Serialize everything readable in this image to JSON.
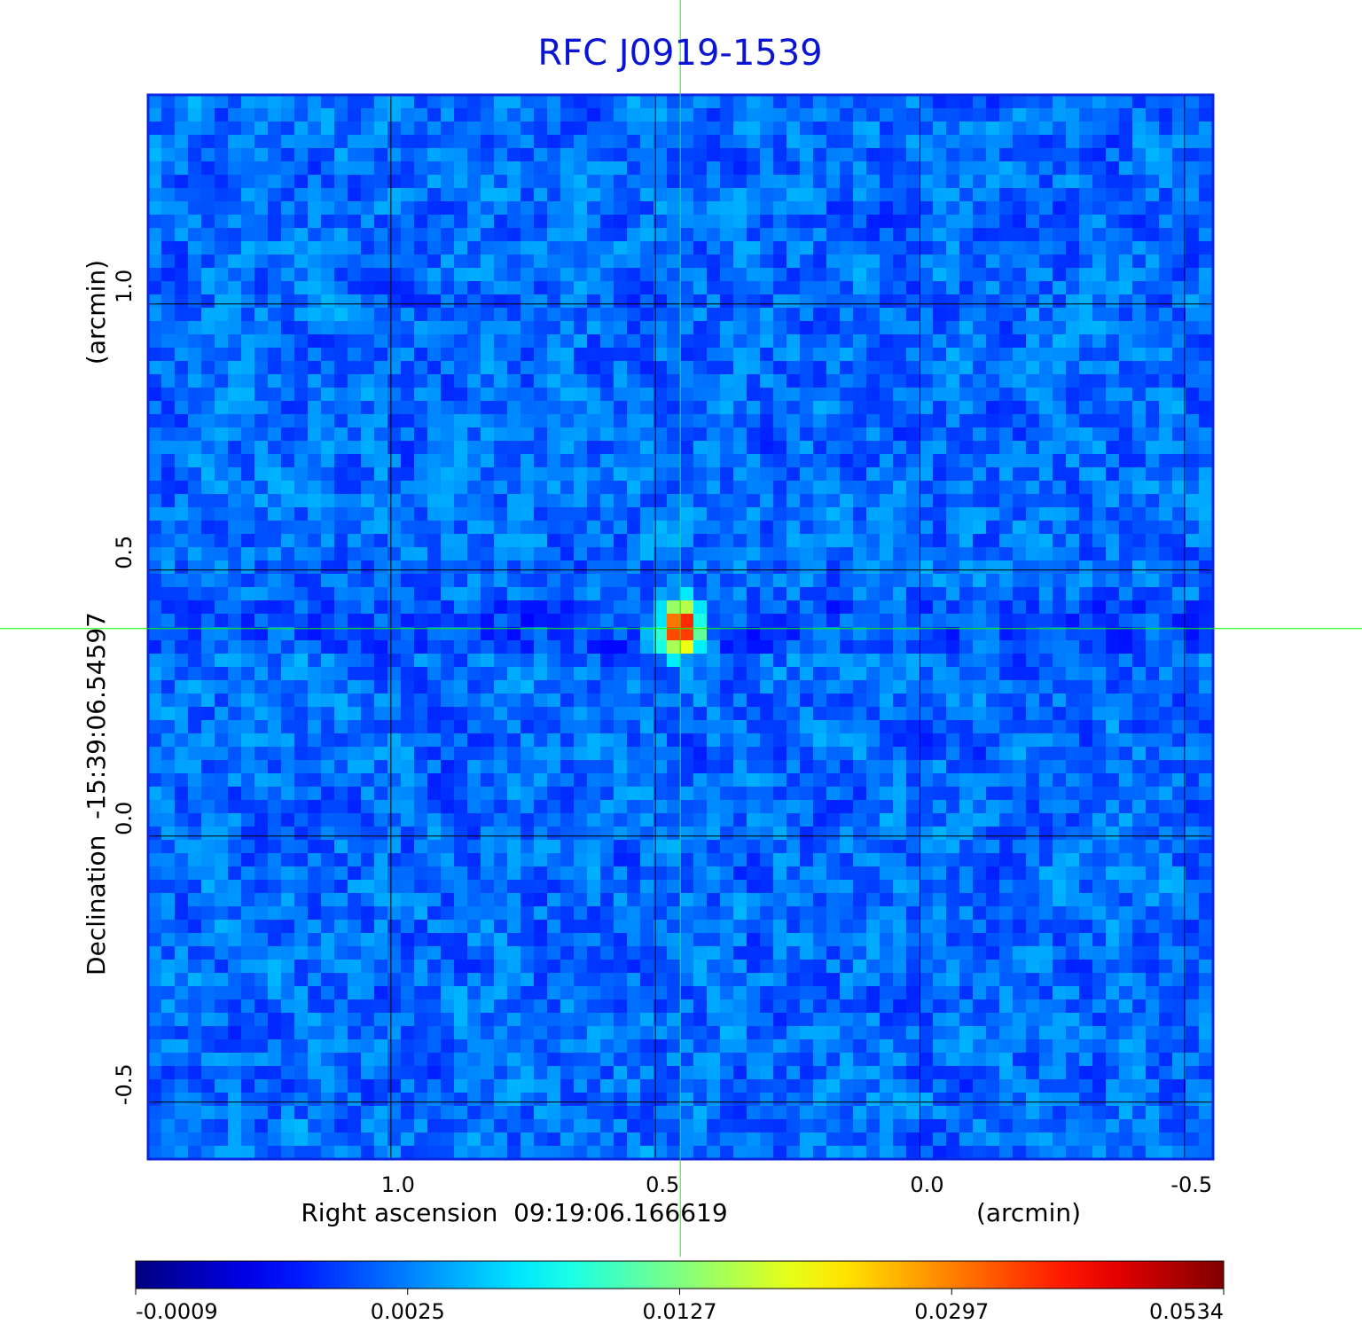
{
  "chart_data": {
    "type": "image",
    "title": "RFC J0919-1539",
    "x_label": "Right ascension  09:19:06.166619",
    "x_unit": "(arcmin)",
    "y_label": "Declination  -15:39:06.54597",
    "y_unit": "(arcmin)",
    "xlim": [
      1.459,
      -0.554
    ],
    "ylim": [
      -0.607,
      1.393
    ],
    "xticks": [
      {
        "value": 1,
        "label": "1.0"
      },
      0.5,
      {
        "value": 0,
        "label": "0.0"
      },
      -0.5
    ],
    "yticks": [
      {
        "value": 1,
        "label": "1.0"
      },
      0.5,
      {
        "value": 0,
        "label": "0.0"
      },
      -0.5
    ],
    "grid": true,
    "crosshair": {
      "x": 0.453,
      "y": 0.39,
      "color": "#00ff00"
    },
    "colormap": "jet",
    "colorbar_ticks": [
      -0.0009,
      0.0025,
      0.0127,
      0.0297,
      0.0534
    ]
  }
}
